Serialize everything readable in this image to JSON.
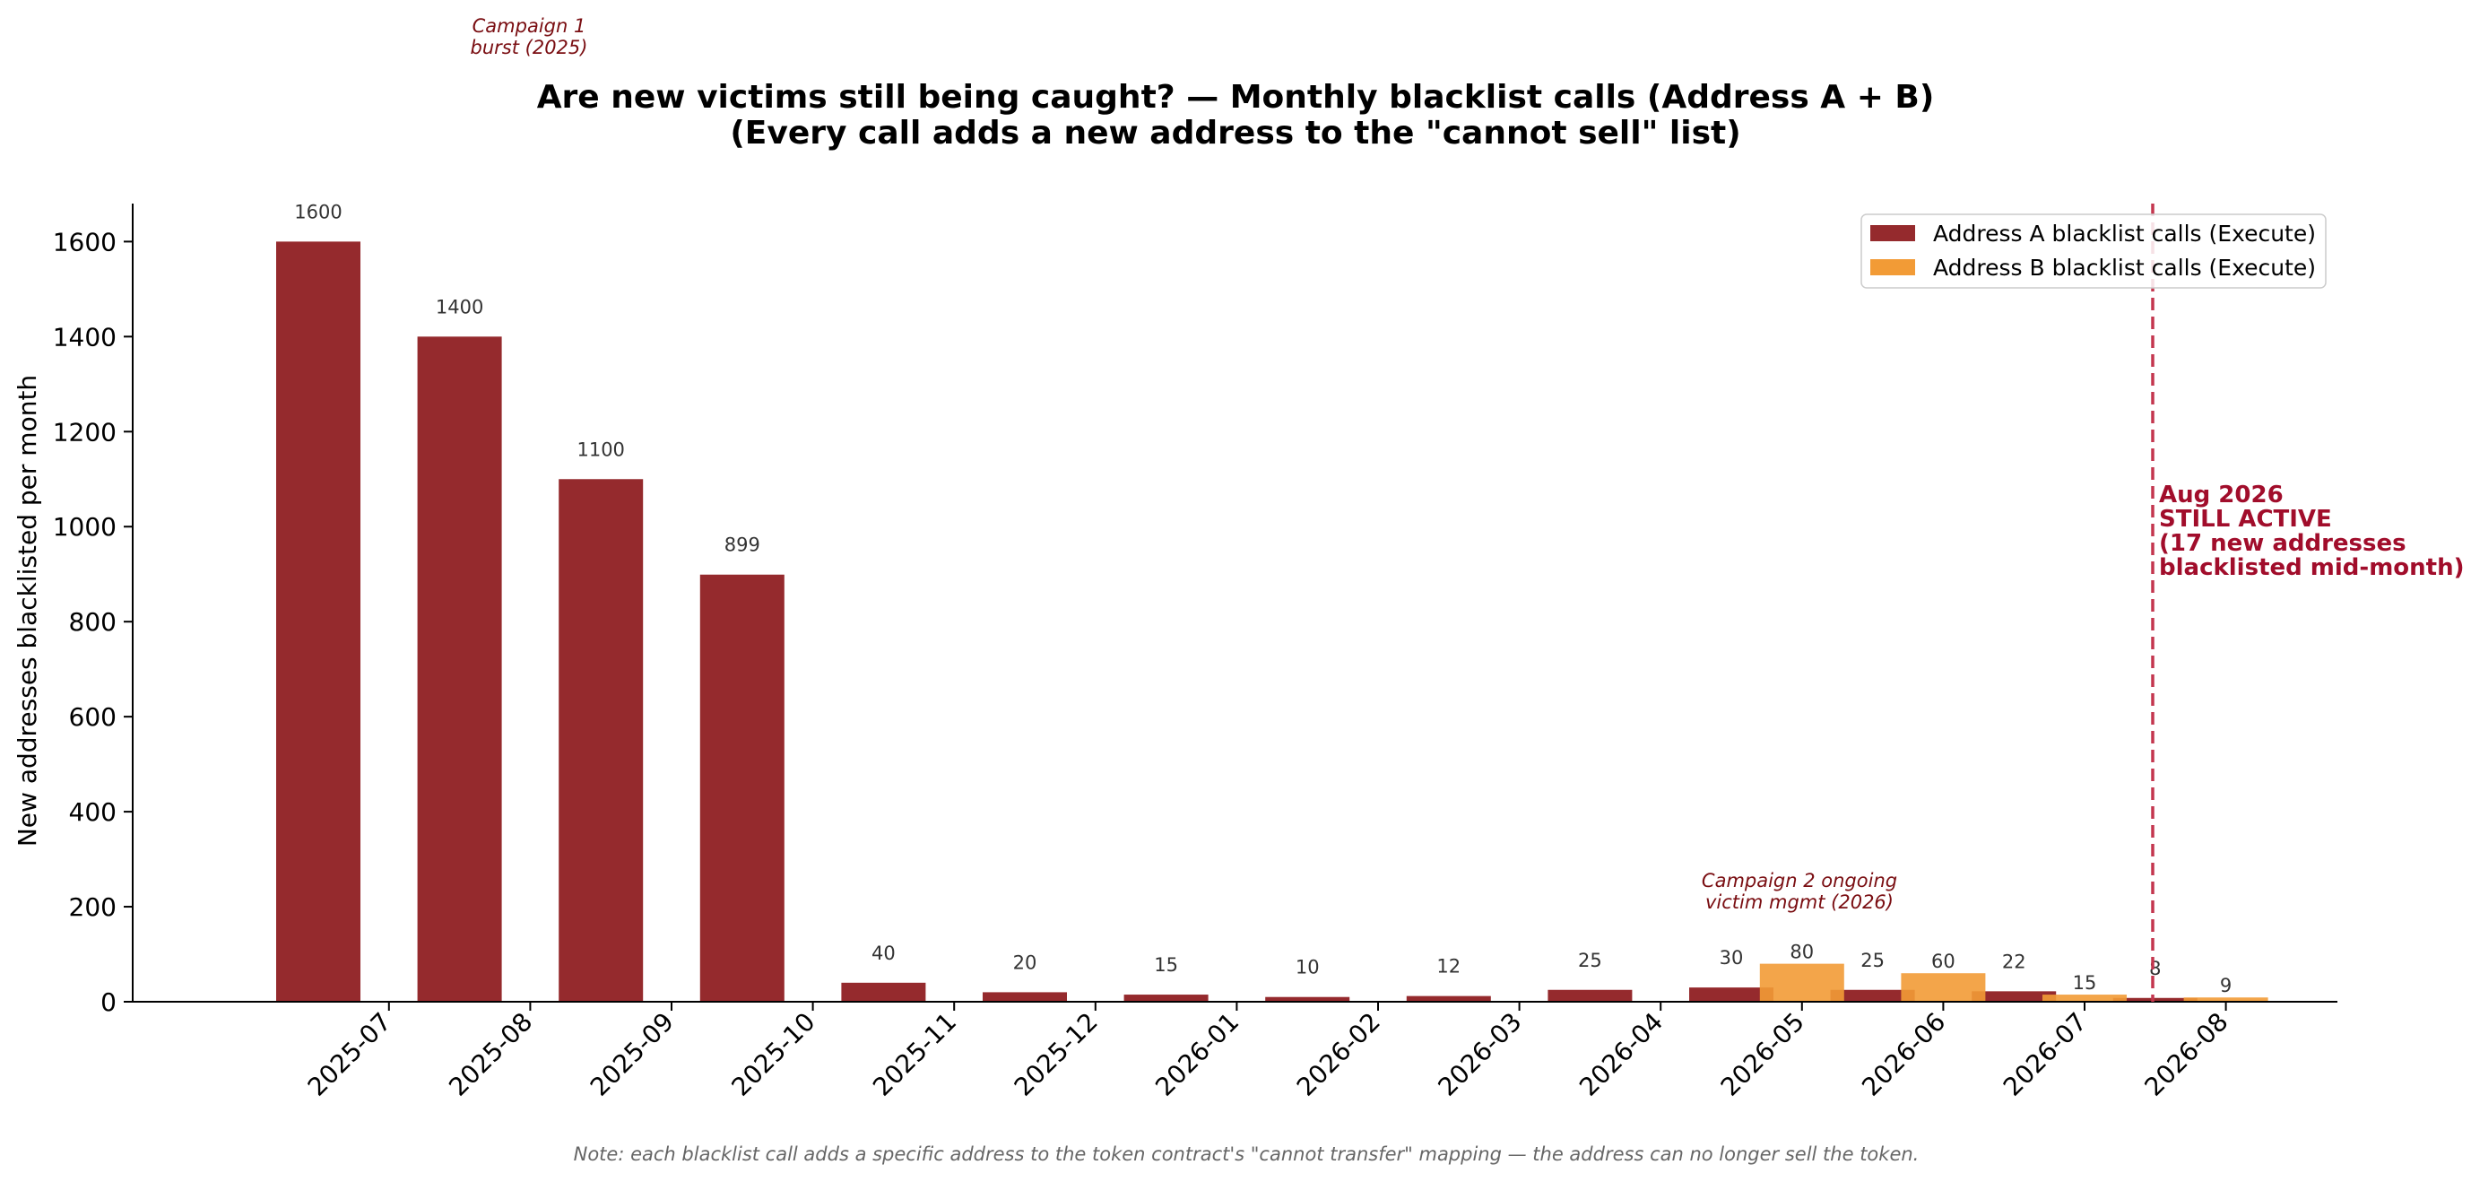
{
  "chart_data": {
    "type": "bar",
    "title_line1": "Are new victims still being caught? — Monthly blacklist calls (Address A + B)",
    "title_line2": "(Every call adds a new address to the \"cannot sell\" list)",
    "ylabel": "New addresses blacklisted per month",
    "xlabel": "",
    "ylim": [
      0,
      1680
    ],
    "yticks": [
      0,
      200,
      400,
      600,
      800,
      1000,
      1200,
      1400,
      1600
    ],
    "categories": [
      "2025-07",
      "2025-08",
      "2025-09",
      "2025-10",
      "2025-11",
      "2025-12",
      "2026-01",
      "2026-02",
      "2026-03",
      "2026-04",
      "2026-05",
      "2026-06",
      "2026-07",
      "2026-08"
    ],
    "series": [
      {
        "name": "Address A blacklist calls (Execute)",
        "color": "#952a2d",
        "values": [
          1600,
          1400,
          1100,
          899,
          40,
          20,
          15,
          10,
          12,
          25,
          30,
          25,
          22,
          8
        ]
      },
      {
        "name": "Address B blacklist calls (Execute)",
        "color": "#f29b36",
        "values": [
          null,
          null,
          null,
          null,
          null,
          null,
          null,
          null,
          null,
          null,
          80,
          60,
          15,
          9
        ]
      }
    ],
    "legend_position": "top-right",
    "grid": false,
    "annotations": {
      "campaign1": [
        "Campaign 1",
        "burst (2025)"
      ],
      "campaign2": [
        "Campaign 2 ongoing",
        "victim mgmt (2026)"
      ],
      "still_active": [
        "Aug 2026",
        "STILL ACTIVE",
        "(17 new addresses",
        "blacklisted mid-month)"
      ],
      "active_line_color": "#c4364f"
    },
    "footnote": "Note: each blacklist call adds a specific address to the token contract's \"cannot transfer\" mapping — the address can no longer sell the token."
  }
}
